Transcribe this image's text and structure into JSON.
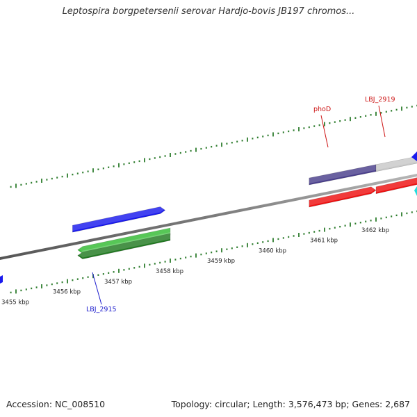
{
  "title": "Leptospira borgpetersenii serovar Hardjo-bovis JB197 chromos...",
  "footer": {
    "accession": "Accession: NC_008510",
    "summary": "Topology: circular; Length: 3,576,473 bp; Genes: 2,687"
  },
  "colors": {
    "backbone": "#808080",
    "forward_tick": "#2e7d2e",
    "reverse_tick": "#2e7d2e",
    "gene_blue": "#1a1aee",
    "gene_green": "#33bb33",
    "gene_darkgreen": "#227a22",
    "gene_purple": "#4a3f8c",
    "gene_red": "#ee1111",
    "gene_gray": "#c8c8c8",
    "gene_cyan": "#22dddd",
    "label_blue": "#1a1acc",
    "label_red": "#cc1111"
  },
  "scale": {
    "unit": "kbp",
    "labels": [
      "3455 kbp",
      "3456 kbp",
      "3457 kbp",
      "3458 kbp",
      "3459 kbp",
      "3460 kbp",
      "3461 kbp",
      "3462 kbp"
    ]
  },
  "genes": [
    {
      "name": "",
      "strand": "forward",
      "color_key": "gene_blue",
      "start_kbp": 3456.1,
      "end_kbp": 3457.9
    },
    {
      "name": "LBJ_2915",
      "strand": "reverse",
      "color_key": "gene_green",
      "start_kbp": 3456.2,
      "end_kbp": 3458.0
    },
    {
      "name": "",
      "strand": "reverse",
      "color_key": "gene_darkgreen",
      "start_kbp": 3456.2,
      "end_kbp": 3458.0
    },
    {
      "name": "phoD",
      "strand": "forward",
      "color_key": "gene_purple",
      "start_kbp": 3460.7,
      "end_kbp": 3462.0
    },
    {
      "name": "",
      "strand": "reverse",
      "color_key": "gene_red",
      "start_kbp": 3460.7,
      "end_kbp": 3462.0
    },
    {
      "name": "LBJ_2919",
      "strand": "forward",
      "color_key": "gene_gray",
      "start_kbp": 3462.0,
      "end_kbp": 3462.9
    },
    {
      "name": "",
      "strand": "reverse",
      "color_key": "gene_red",
      "start_kbp": 3462.0,
      "end_kbp": 3462.9
    }
  ],
  "labels": [
    {
      "text": "LBJ_2915",
      "color_key": "label_blue"
    },
    {
      "text": "phoD",
      "color_key": "label_red"
    },
    {
      "text": "LBJ_2919",
      "color_key": "label_red"
    }
  ]
}
